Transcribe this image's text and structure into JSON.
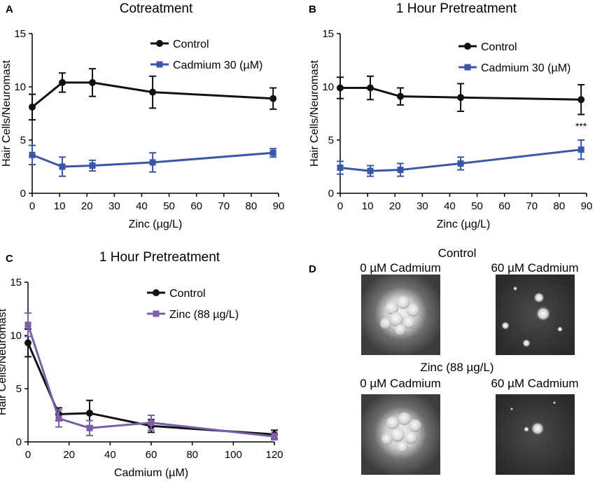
{
  "colors": {
    "control": "#111111",
    "cadmium": "#3a56a6",
    "zinc": "#7b5ea7",
    "axis": "#000000"
  },
  "chart_data": [
    {
      "panel_letter": "A",
      "type": "line",
      "title": "Cotreatment",
      "xlabel": "Zinc (µg/L)",
      "ylabel": "Hair Cells/Neuromast",
      "xlim": [
        0,
        90
      ],
      "ylim": [
        0,
        15
      ],
      "xticks": [
        0,
        10,
        20,
        30,
        40,
        50,
        60,
        70,
        80,
        90
      ],
      "yticks": [
        0,
        5,
        10,
        15
      ],
      "legend": "top-right",
      "series": [
        {
          "name": "Control",
          "marker": "circle",
          "color": "#111111",
          "x": [
            0,
            11,
            22,
            44,
            88
          ],
          "y": [
            8.1,
            10.4,
            10.4,
            9.5,
            8.9
          ],
          "err": [
            1.2,
            0.9,
            1.3,
            1.5,
            1.0
          ]
        },
        {
          "name": "Cadmium 30 (µM)",
          "marker": "square",
          "color": "#3a56a6",
          "x": [
            0,
            11,
            22,
            44,
            88
          ],
          "y": [
            3.6,
            2.5,
            2.6,
            2.9,
            3.8
          ],
          "err": [
            0.9,
            0.9,
            0.5,
            0.9,
            0.4
          ]
        }
      ],
      "annotations": []
    },
    {
      "panel_letter": "B",
      "type": "line",
      "title": "1 Hour Pretreatment",
      "xlabel": "Zinc (µg/L)",
      "ylabel": "Hair Cells/Neuromast",
      "xlim": [
        0,
        90
      ],
      "ylim": [
        0,
        15
      ],
      "xticks": [
        0,
        10,
        20,
        30,
        40,
        50,
        60,
        70,
        80,
        90
      ],
      "yticks": [
        0,
        5,
        10,
        15
      ],
      "legend": "top-right",
      "series": [
        {
          "name": "Control",
          "marker": "circle",
          "color": "#111111",
          "x": [
            0,
            11,
            22,
            44,
            88
          ],
          "y": [
            9.9,
            9.9,
            9.1,
            9.0,
            8.8
          ],
          "err": [
            1.0,
            1.1,
            0.8,
            1.3,
            1.4
          ]
        },
        {
          "name": "Cadmium 30 (µM)",
          "marker": "square",
          "color": "#3a56a6",
          "x": [
            0,
            11,
            22,
            44,
            88
          ],
          "y": [
            2.4,
            2.1,
            2.2,
            2.8,
            4.1
          ],
          "err": [
            0.6,
            0.5,
            0.6,
            0.6,
            0.9
          ]
        }
      ],
      "annotations": [
        {
          "text": "***",
          "x": 88,
          "y": 6.0
        }
      ]
    },
    {
      "panel_letter": "C",
      "type": "line",
      "title": "1 Hour Pretreatment",
      "xlabel": "Cadmium (µM)",
      "ylabel": "Hair Cells/Neuromast",
      "xlim": [
        0,
        120
      ],
      "ylim": [
        0,
        15
      ],
      "xticks": [
        0,
        20,
        40,
        60,
        80,
        100,
        120
      ],
      "yticks": [
        0,
        5,
        10,
        15
      ],
      "legend": "top-right",
      "series": [
        {
          "name": "Control",
          "marker": "circle",
          "color": "#111111",
          "x": [
            0,
            15,
            30,
            60,
            120
          ],
          "y": [
            9.3,
            2.6,
            2.7,
            1.5,
            0.7
          ],
          "err": [
            1.3,
            0.6,
            1.2,
            0.6,
            0.4
          ]
        },
        {
          "name": "Zinc (88 µg/L)",
          "marker": "square",
          "color": "#7b5ea7",
          "x": [
            0,
            15,
            30,
            60,
            120
          ],
          "y": [
            11.0,
            2.2,
            1.3,
            1.8,
            0.5
          ],
          "err": [
            1.1,
            0.8,
            0.7,
            0.7,
            0.3
          ]
        }
      ],
      "annotations": []
    }
  ],
  "panel_d": {
    "letter": "D",
    "groups": [
      {
        "title": "Control",
        "labels": [
          "0 µM Cadmium",
          "60 µM Cadmium"
        ]
      },
      {
        "title": "Zinc (88 µg/L)",
        "labels": [
          "0 µM Cadmium",
          "60 µM Cadmium"
        ]
      }
    ]
  }
}
